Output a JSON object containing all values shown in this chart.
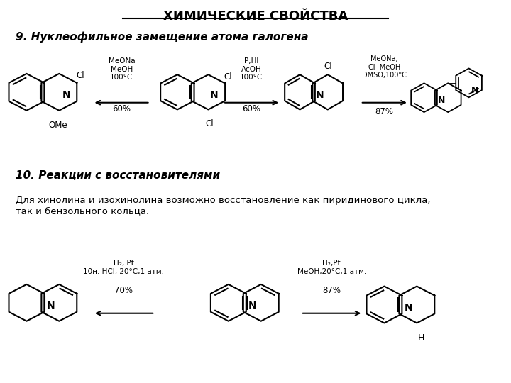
{
  "title": "ХИМИЧЕСКИЕ СВОЙСТВА",
  "subtitle1": "9. Нуклеофильное замещение атома галогена",
  "subtitle2": "10. Реакции с восстановителями",
  "body_text": "Для хинолина и изохинолина возможно восстановление как пиридинового цикла,\nтак и бензольного кольца.",
  "r1_cond_left": "MeONa\nMeOH\n100°C",
  "r1_yield_left": "60%",
  "r1_cond_mid": "P,HI\nAcOH\n100°C",
  "r1_yield_mid": "60%",
  "r1_cond_right": "MeONa,\nCl  MeOH\nDMSO,100°C",
  "r1_yield_right": "87%",
  "r2_cond_left": "H₂, Pt\n10н. HCl, 20°C,1 атм.",
  "r2_yield_left": "70%",
  "r2_cond_right": "H₂,Pt\nMeOH,20°C,1 атм.",
  "r2_yield_right": "87%",
  "bg_color": "#ffffff",
  "text_color": "#000000"
}
